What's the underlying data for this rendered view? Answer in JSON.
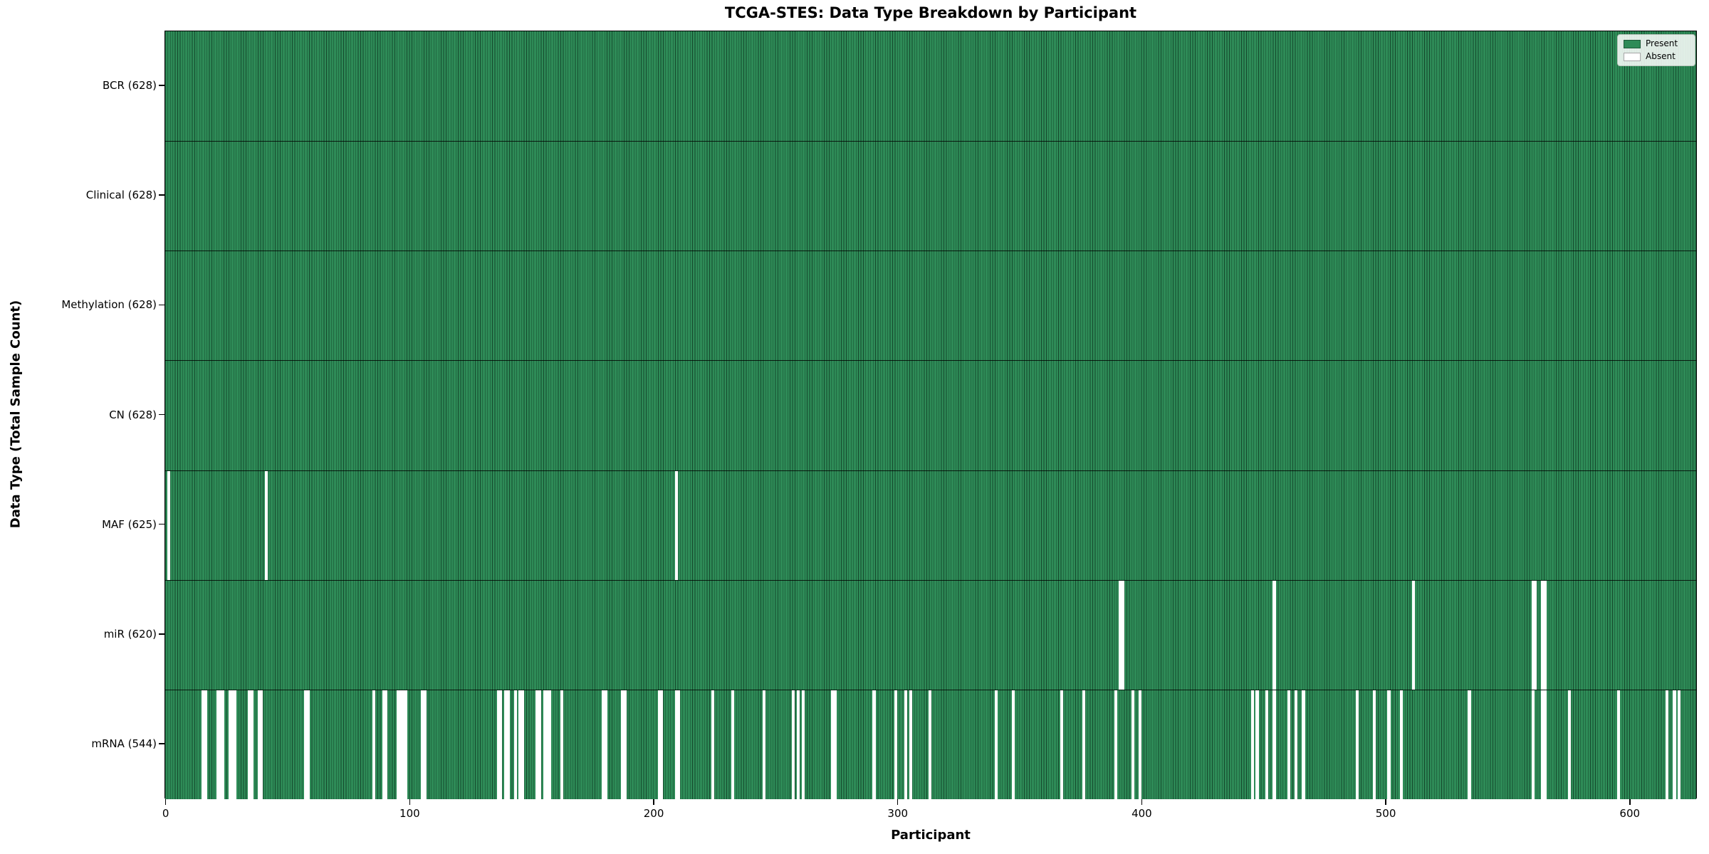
{
  "chart_data": {
    "type": "heatmap",
    "title": "TCGA-STES: Data Type Breakdown by Participant",
    "xlabel": "Participant",
    "ylabel": "Data Type (Total Sample Count)",
    "n_participants": 628,
    "x_ticks": [
      0,
      100,
      200,
      300,
      400,
      500,
      600
    ],
    "x_range": [
      -0.5,
      627.5
    ],
    "grid": false,
    "legend_position": "upper right",
    "colors": {
      "present": "#2e8b57",
      "absent": "#ffffff",
      "bar_edge": "#14482c"
    },
    "legend": [
      {
        "label": "Present",
        "color": "#2e8b57"
      },
      {
        "label": "Absent",
        "color": "#ffffff"
      }
    ],
    "categories": [
      "BCR (628)",
      "Clinical (628)",
      "Methylation (628)",
      "CN (628)",
      "MAF (625)",
      "miR (620)",
      "mRNA (544)"
    ],
    "series": [
      {
        "name": "BCR",
        "total": 628,
        "absent_participants": []
      },
      {
        "name": "Clinical",
        "total": 628,
        "absent_participants": []
      },
      {
        "name": "Methylation",
        "total": 628,
        "absent_participants": []
      },
      {
        "name": "CN",
        "total": 628,
        "absent_participants": []
      },
      {
        "name": "MAF",
        "total": 625,
        "absent_participants": [
          1,
          41,
          209
        ]
      },
      {
        "name": "miR",
        "total": 620,
        "absent_participants": [
          391,
          392,
          454,
          511,
          560,
          561,
          564,
          565
        ]
      },
      {
        "name": "mRNA",
        "total": 544,
        "absent_participants": [
          15,
          16,
          21,
          22,
          23,
          26,
          27,
          28,
          34,
          35,
          38,
          39,
          57,
          58,
          85,
          89,
          90,
          95,
          96,
          97,
          98,
          105,
          106,
          136,
          137,
          139,
          140,
          143,
          145,
          146,
          152,
          153,
          155,
          156,
          157,
          162,
          179,
          180,
          187,
          188,
          202,
          203,
          209,
          210,
          224,
          232,
          245,
          257,
          259,
          261,
          273,
          274,
          290,
          299,
          303,
          305,
          313,
          340,
          347,
          367,
          376,
          389,
          396,
          399,
          445,
          447,
          451,
          454,
          460,
          463,
          466,
          488,
          495,
          501,
          506,
          534,
          560,
          564,
          565,
          575,
          595,
          615,
          618,
          620
        ]
      }
    ]
  }
}
